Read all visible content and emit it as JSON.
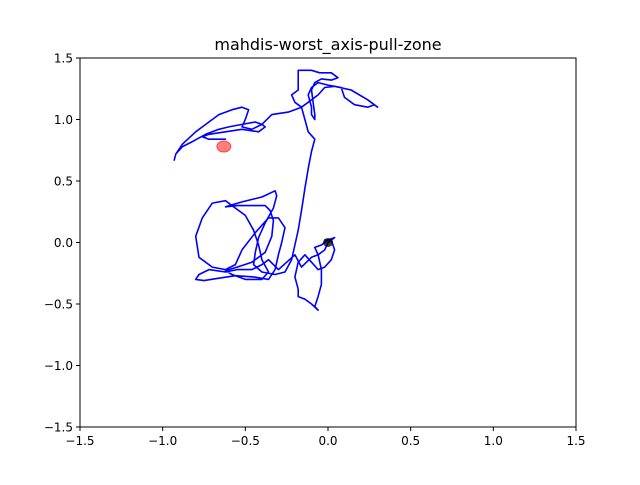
{
  "chart_data": {
    "type": "line",
    "title": "mahdis-worst_axis-pull-zone",
    "xlabel": "",
    "ylabel": "",
    "xlim": [
      -1.5,
      1.5
    ],
    "ylim": [
      -1.5,
      1.5
    ],
    "x_ticks": [
      -1.5,
      -1.0,
      -0.5,
      0.0,
      0.5,
      1.0,
      1.5
    ],
    "x_tick_labels": [
      "−1.5",
      "−1.0",
      "−0.5",
      "0.0",
      "0.5",
      "1.0",
      "1.5"
    ],
    "y_ticks": [
      -1.5,
      -1.0,
      -0.5,
      0.0,
      0.5,
      1.0,
      1.5
    ],
    "y_tick_labels": [
      "−1.5",
      "−1.0",
      "−0.5",
      "0.0",
      "0.5",
      "1.0",
      "1.5"
    ],
    "grid": false,
    "colors": {
      "trajectory": "#0000ff",
      "target": "#ff0000",
      "start": "#000000"
    },
    "series": [
      {
        "values_xy": [
          [
            0.0,
            0.0
          ],
          [
            -0.02,
            -0.06
          ],
          [
            -0.06,
            -0.1
          ],
          [
            -0.1,
            -0.12
          ],
          [
            -0.13,
            -0.16
          ],
          [
            -0.16,
            -0.2
          ],
          [
            -0.2,
            -0.1
          ],
          [
            -0.25,
            -0.16
          ],
          [
            -0.3,
            -0.22
          ],
          [
            -0.36,
            -0.14
          ],
          [
            -0.4,
            -0.18
          ],
          [
            -0.46,
            -0.22
          ],
          [
            -0.55,
            -0.22
          ],
          [
            -0.62,
            -0.24
          ],
          [
            -0.72,
            -0.22
          ],
          [
            -0.78,
            -0.26
          ],
          [
            -0.8,
            -0.3
          ],
          [
            -0.75,
            -0.31
          ],
          [
            -0.66,
            -0.29
          ],
          [
            -0.56,
            -0.27
          ],
          [
            -0.45,
            -0.28
          ],
          [
            -0.36,
            -0.3
          ],
          [
            -0.32,
            -0.22
          ],
          [
            -0.3,
            -0.1
          ],
          [
            -0.28,
            0.0
          ],
          [
            -0.26,
            0.12
          ],
          [
            -0.3,
            0.2
          ],
          [
            -0.36,
            0.2
          ],
          [
            -0.44,
            0.08
          ],
          [
            -0.52,
            -0.06
          ],
          [
            -0.56,
            -0.18
          ],
          [
            -0.62,
            -0.22
          ],
          [
            -0.7,
            -0.2
          ],
          [
            -0.78,
            -0.12
          ],
          [
            -0.8,
            0.05
          ],
          [
            -0.76,
            0.2
          ],
          [
            -0.7,
            0.32
          ],
          [
            -0.62,
            0.34
          ],
          [
            -0.56,
            0.28
          ],
          [
            -0.5,
            0.22
          ],
          [
            -0.45,
            0.1
          ],
          [
            -0.42,
            -0.02
          ],
          [
            -0.4,
            -0.14
          ],
          [
            -0.36,
            -0.24
          ],
          [
            -0.4,
            -0.3
          ],
          [
            -0.5,
            -0.3
          ],
          [
            -0.58,
            -0.26
          ],
          [
            -0.62,
            -0.23
          ],
          [
            -0.55,
            -0.2
          ],
          [
            -0.46,
            -0.16
          ],
          [
            -0.38,
            -0.08
          ],
          [
            -0.34,
            0.05
          ],
          [
            -0.33,
            0.18
          ],
          [
            -0.35,
            0.26
          ],
          [
            -0.38,
            0.3
          ],
          [
            -0.46,
            0.3
          ],
          [
            -0.55,
            0.3
          ],
          [
            -0.62,
            0.29
          ],
          [
            -0.52,
            0.33
          ],
          [
            -0.4,
            0.37
          ],
          [
            -0.32,
            0.42
          ],
          [
            -0.31,
            0.38
          ],
          [
            -0.33,
            0.28
          ],
          [
            -0.38,
            0.16
          ],
          [
            -0.42,
            0.04
          ],
          [
            -0.44,
            -0.08
          ],
          [
            -0.45,
            -0.18
          ],
          [
            -0.4,
            -0.24
          ],
          [
            -0.32,
            -0.26
          ],
          [
            -0.26,
            -0.24
          ],
          [
            -0.22,
            -0.14
          ],
          [
            -0.2,
            -0.02
          ],
          [
            -0.18,
            0.1
          ],
          [
            -0.16,
            0.26
          ],
          [
            -0.14,
            0.44
          ],
          [
            -0.12,
            0.6
          ],
          [
            -0.1,
            0.74
          ],
          [
            -0.08,
            0.84
          ],
          [
            -0.12,
            0.9
          ],
          [
            -0.14,
            1.0
          ],
          [
            -0.16,
            1.1
          ],
          [
            -0.2,
            1.14
          ],
          [
            -0.22,
            1.2
          ],
          [
            -0.18,
            1.24
          ],
          [
            -0.18,
            1.32
          ],
          [
            -0.18,
            1.4
          ],
          [
            -0.1,
            1.4
          ],
          [
            -0.05,
            1.38
          ],
          [
            0.02,
            1.38
          ],
          [
            0.06,
            1.34
          ],
          [
            0.02,
            1.32
          ],
          [
            -0.04,
            1.33
          ],
          [
            -0.08,
            1.3
          ],
          [
            -0.1,
            1.24
          ],
          [
            -0.09,
            1.14
          ],
          [
            -0.08,
            1.04
          ],
          [
            -0.08,
            1.0
          ],
          [
            -0.1,
            1.04
          ],
          [
            -0.1,
            1.1
          ],
          [
            -0.12,
            1.2
          ],
          [
            -0.1,
            1.26
          ],
          [
            -0.06,
            1.3
          ],
          [
            0.0,
            1.28
          ],
          [
            0.08,
            1.26
          ],
          [
            0.1,
            1.18
          ],
          [
            0.16,
            1.12
          ],
          [
            0.24,
            1.1
          ],
          [
            0.28,
            1.12
          ],
          [
            0.3,
            1.1
          ],
          [
            0.24,
            1.16
          ],
          [
            0.14,
            1.24
          ],
          [
            0.04,
            1.27
          ],
          [
            -0.02,
            1.26
          ],
          [
            -0.06,
            1.2
          ],
          [
            -0.1,
            1.16
          ],
          [
            -0.16,
            1.1
          ],
          [
            -0.24,
            1.06
          ],
          [
            -0.34,
            1.04
          ],
          [
            -0.4,
            0.96
          ],
          [
            -0.44,
            0.98
          ],
          [
            -0.52,
            0.96
          ],
          [
            -0.6,
            0.94
          ],
          [
            -0.66,
            0.92
          ],
          [
            -0.74,
            0.88
          ],
          [
            -0.82,
            0.82
          ],
          [
            -0.88,
            0.78
          ],
          [
            -0.92,
            0.72
          ],
          [
            -0.93,
            0.67
          ],
          [
            -0.92,
            0.72
          ],
          [
            -0.88,
            0.8
          ],
          [
            -0.8,
            0.9
          ],
          [
            -0.74,
            0.96
          ],
          [
            -0.66,
            1.04
          ],
          [
            -0.58,
            1.08
          ],
          [
            -0.52,
            1.1
          ],
          [
            -0.48,
            1.08
          ],
          [
            -0.5,
            1.0
          ],
          [
            -0.52,
            0.94
          ],
          [
            -0.46,
            0.92
          ],
          [
            -0.4,
            0.96
          ],
          [
            -0.38,
            0.94
          ],
          [
            -0.42,
            0.9
          ],
          [
            -0.52,
            0.92
          ],
          [
            -0.62,
            0.9
          ],
          [
            -0.72,
            0.88
          ],
          [
            -0.76,
            0.86
          ],
          [
            -0.72,
            0.84
          ],
          [
            -0.62,
            0.84
          ]
        ]
      },
      {
        "values_xy": [
          [
            0.0,
            0.0
          ],
          [
            0.04,
            0.04
          ],
          [
            0.0,
            0.02
          ],
          [
            -0.04,
            -0.02
          ],
          [
            -0.08,
            -0.04
          ],
          [
            -0.06,
            -0.1
          ],
          [
            -0.04,
            -0.22
          ],
          [
            -0.04,
            -0.34
          ],
          [
            -0.06,
            -0.44
          ],
          [
            -0.08,
            -0.52
          ],
          [
            -0.06,
            -0.55
          ],
          [
            -0.1,
            -0.5
          ],
          [
            -0.14,
            -0.46
          ],
          [
            -0.18,
            -0.44
          ],
          [
            -0.18,
            -0.38
          ],
          [
            -0.2,
            -0.28
          ],
          [
            -0.18,
            -0.16
          ],
          [
            -0.14,
            -0.1
          ],
          [
            -0.1,
            -0.16
          ],
          [
            -0.06,
            -0.22
          ],
          [
            -0.02,
            -0.2
          ],
          [
            0.02,
            -0.14
          ],
          [
            0.04,
            -0.06
          ],
          [
            0.02,
            0.02
          ],
          [
            -0.02,
            0.02
          ]
        ]
      }
    ],
    "markers": [
      {
        "type": "target",
        "x": -0.63,
        "y": 0.78
      },
      {
        "type": "start",
        "x": 0.0,
        "y": 0.0
      }
    ]
  }
}
